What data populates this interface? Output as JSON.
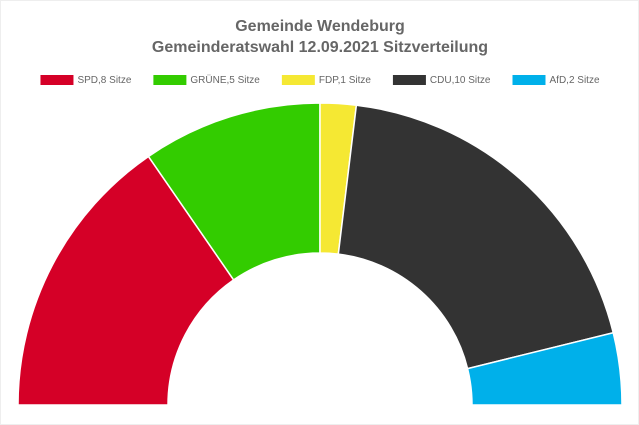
{
  "chart_data": {
    "type": "half-doughnut",
    "title": "Gemeinde Wendeburg",
    "subtitle": "Gemeinderatswahl 12.09.2021 Sitzverteilung",
    "categories": [
      "SPD,8 Sitze",
      "GRÜNE,5 Sitze",
      "FDP,1 Sitze",
      "CDU,10 Sitze",
      "AfD,2 Sitze"
    ],
    "values": [
      8,
      5,
      1,
      10,
      2
    ],
    "colors": [
      "#d50027",
      "#33cc00",
      "#f5e833",
      "#333333",
      "#00b0ea"
    ],
    "legend": "top"
  }
}
